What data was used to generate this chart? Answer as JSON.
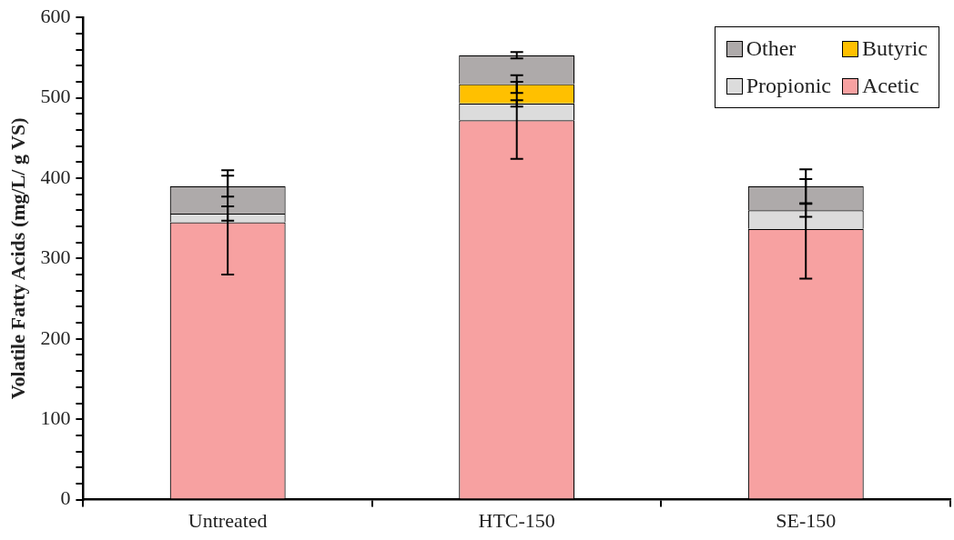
{
  "chart_data": {
    "type": "bar",
    "stacked": true,
    "ylabel": "Volatile Fatty Acids (mg/L/ g VS)",
    "categories": [
      "Untreated",
      "HTC-150",
      "SE-150"
    ],
    "series": [
      {
        "name": "Acetic",
        "color": "#f7a1a1",
        "values": [
          345,
          472,
          337
        ],
        "errors": [
          65,
          48,
          62
        ]
      },
      {
        "name": "Propionic",
        "color": "#dcdcdc",
        "values": [
          11,
          21,
          23
        ],
        "errors": [
          9,
          4,
          8
        ]
      },
      {
        "name": "Butyric",
        "color": "#ffc000",
        "values": [
          null,
          24,
          null
        ],
        "errors": [
          null,
          11,
          null
        ]
      },
      {
        "name": "Other",
        "color": "#aeaaaa",
        "values": [
          34,
          36,
          30
        ],
        "errors": [
          13,
          4,
          21
        ]
      }
    ],
    "ylim": [
      0,
      600
    ],
    "yticks": [
      0,
      {
        "value": 20,
        "label": null
      },
      {
        "value": 40,
        "label": null
      },
      {
        "value": 60,
        "label": null
      },
      {
        "value": 80,
        "label": null
      },
      100,
      {
        "value": 120,
        "label": null
      },
      {
        "value": 140,
        "label": null
      },
      {
        "value": 160,
        "label": null
      },
      {
        "value": 180,
        "label": null
      },
      200,
      {
        "value": 220,
        "label": null
      },
      {
        "value": 240,
        "label": null
      },
      {
        "value": 260,
        "label": null
      },
      {
        "value": 280,
        "label": null
      },
      300,
      {
        "value": 320,
        "label": null
      },
      {
        "value": 340,
        "label": null
      },
      {
        "value": 360,
        "label": null
      },
      {
        "value": 380,
        "label": null
      },
      400,
      {
        "value": 420,
        "label": null
      },
      {
        "value": 440,
        "label": null
      },
      {
        "value": 460,
        "label": null
      },
      {
        "value": 480,
        "label": null
      },
      500,
      {
        "value": 520,
        "label": null
      },
      {
        "value": 540,
        "label": null
      },
      {
        "value": 560,
        "label": null
      },
      {
        "value": 580,
        "label": null
      },
      600
    ],
    "grid": false,
    "legend": "top right"
  }
}
